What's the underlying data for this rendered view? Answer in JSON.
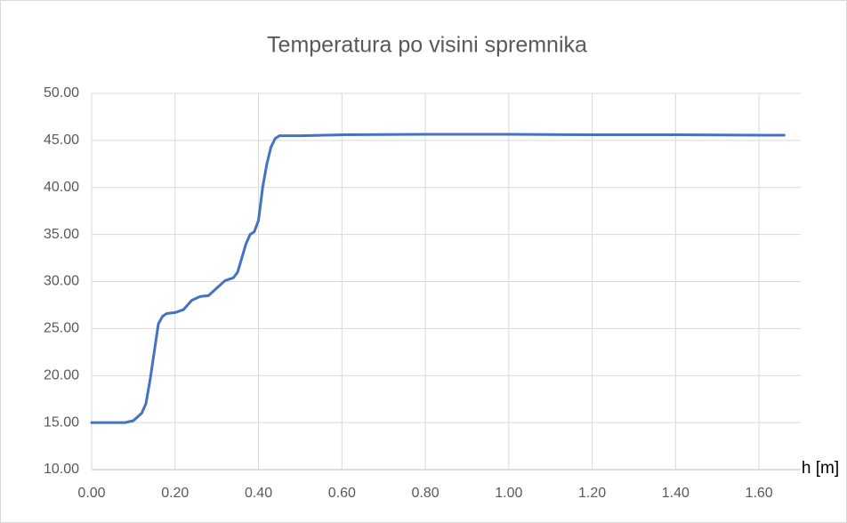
{
  "chart_data": {
    "type": "line",
    "title": "Temperatura po visini spremnika",
    "x_label": "h [m]",
    "x": [
      0,
      0.05,
      0.08,
      0.1,
      0.12,
      0.13,
      0.14,
      0.15,
      0.16,
      0.17,
      0.18,
      0.2,
      0.22,
      0.24,
      0.26,
      0.28,
      0.3,
      0.32,
      0.34,
      0.35,
      0.36,
      0.37,
      0.38,
      0.39,
      0.4,
      0.41,
      0.42,
      0.43,
      0.44,
      0.45,
      0.5,
      0.6,
      0.8,
      1.0,
      1.2,
      1.4,
      1.6,
      1.66
    ],
    "series": [
      {
        "name": "Temperatura",
        "color": "#4472c4",
        "values": [
          15.0,
          15.0,
          15.0,
          15.2,
          16.0,
          17.0,
          19.5,
          22.5,
          25.5,
          26.3,
          26.6,
          26.7,
          27.0,
          28.0,
          28.4,
          28.5,
          29.3,
          30.1,
          30.4,
          31.0,
          32.5,
          34.0,
          35.0,
          35.3,
          36.5,
          40.0,
          42.5,
          44.3,
          45.2,
          45.5,
          45.5,
          45.6,
          45.65,
          45.65,
          45.6,
          45.6,
          45.55,
          45.55
        ]
      }
    ],
    "xlim": [
      0,
      1.7
    ],
    "xticks": [
      {
        "value": 0,
        "label": "0.00"
      },
      {
        "value": 0.2,
        "label": "0.20"
      },
      {
        "value": 0.4,
        "label": "0.40"
      },
      {
        "value": 0.6,
        "label": "0.60"
      },
      {
        "value": 0.8,
        "label": "0.80"
      },
      {
        "value": 1.0,
        "label": "1.00"
      },
      {
        "value": 1.2,
        "label": "1.20"
      },
      {
        "value": 1.4,
        "label": "1.40"
      },
      {
        "value": 1.6,
        "label": "1.60"
      }
    ],
    "ylim": [
      10,
      50
    ],
    "yticks": [
      {
        "value": 10,
        "label": "10.00"
      },
      {
        "value": 15,
        "label": "15.00"
      },
      {
        "value": 20,
        "label": "20.00"
      },
      {
        "value": 25,
        "label": "25.00"
      },
      {
        "value": 30,
        "label": "30.00"
      },
      {
        "value": 35,
        "label": "35.00"
      },
      {
        "value": 40,
        "label": "40.00"
      },
      {
        "value": 45,
        "label": "45.00"
      },
      {
        "value": 50,
        "label": "50.00"
      }
    ],
    "grid": true
  }
}
